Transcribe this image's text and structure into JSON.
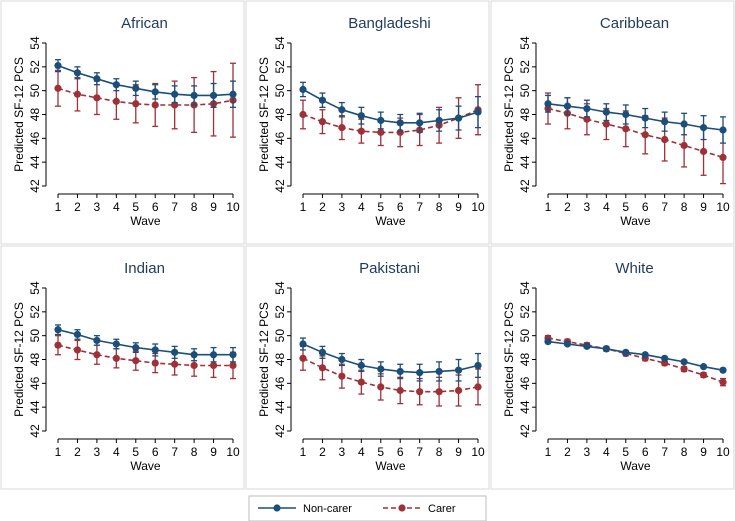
{
  "chart_data": {
    "type": "line",
    "colors": {
      "noncarer": "#1b4f7a",
      "carer": "#9e3138"
    },
    "legend": {
      "placement": "bottom-center",
      "items": [
        "Non-carer",
        "Carer"
      ]
    },
    "panels": [
      {
        "title": "African",
        "xlabel": "Wave",
        "ylabel": "Predicted SF-12 PCS",
        "x": [
          1,
          2,
          3,
          4,
          5,
          6,
          7,
          8,
          9,
          10
        ],
        "ylim": [
          42,
          54
        ],
        "yticks": [
          42,
          44,
          46,
          48,
          50,
          52,
          54
        ],
        "series": [
          {
            "name": "Non-carer",
            "values": [
              52.1,
              51.5,
              51.0,
              50.5,
              50.2,
              49.9,
              49.7,
              49.6,
              49.6,
              49.7
            ],
            "ci_low": [
              51.6,
              51.0,
              50.5,
              50.0,
              49.6,
              49.3,
              49.0,
              48.8,
              48.6,
              48.6
            ],
            "ci_high": [
              52.6,
              52.0,
              51.5,
              51.0,
              50.8,
              50.5,
              50.4,
              50.4,
              50.6,
              50.8
            ]
          },
          {
            "name": "Carer",
            "values": [
              50.2,
              49.7,
              49.4,
              49.1,
              48.9,
              48.8,
              48.8,
              48.8,
              48.9,
              49.2
            ],
            "ci_low": [
              48.7,
              48.3,
              48.0,
              47.6,
              47.3,
              47.0,
              46.8,
              46.5,
              46.2,
              46.1
            ],
            "ci_high": [
              51.7,
              51.1,
              50.8,
              50.6,
              50.5,
              50.6,
              50.8,
              51.1,
              51.6,
              52.3
            ]
          }
        ]
      },
      {
        "title": "Bangladeshi",
        "xlabel": "Wave",
        "ylabel": "Predicted SF-12 PCS",
        "x": [
          1,
          2,
          3,
          4,
          5,
          6,
          7,
          8,
          9,
          10
        ],
        "ylim": [
          42,
          54
        ],
        "yticks": [
          42,
          44,
          46,
          48,
          50,
          52,
          54
        ],
        "series": [
          {
            "name": "Non-carer",
            "values": [
              50.1,
              49.2,
              48.4,
              47.9,
              47.5,
              47.3,
              47.3,
              47.5,
              47.7,
              48.2
            ],
            "ci_low": [
              49.5,
              48.6,
              47.8,
              47.2,
              46.8,
              46.6,
              46.5,
              46.6,
              46.7,
              46.9
            ],
            "ci_high": [
              50.7,
              49.8,
              49.0,
              48.6,
              48.2,
              48.0,
              48.1,
              48.4,
              48.7,
              49.5
            ]
          },
          {
            "name": "Carer",
            "values": [
              48.0,
              47.4,
              46.9,
              46.6,
              46.5,
              46.5,
              46.7,
              47.1,
              47.7,
              48.4
            ],
            "ci_low": [
              46.8,
              46.4,
              45.9,
              45.6,
              45.4,
              45.3,
              45.4,
              45.6,
              46.0,
              46.3
            ],
            "ci_high": [
              49.2,
              48.4,
              47.9,
              47.6,
              47.6,
              47.7,
              48.0,
              48.6,
              49.4,
              50.5
            ]
          }
        ]
      },
      {
        "title": "Caribbean",
        "xlabel": "Wave",
        "ylabel": "Predicted SF-12 PCS",
        "x": [
          1,
          2,
          3,
          4,
          5,
          6,
          7,
          8,
          9,
          10
        ],
        "ylim": [
          42,
          54
        ],
        "yticks": [
          42,
          44,
          46,
          48,
          50,
          52,
          54
        ],
        "series": [
          {
            "name": "Non-carer",
            "values": [
              48.9,
              48.7,
              48.5,
              48.2,
              48.0,
              47.7,
              47.4,
              47.2,
              46.9,
              46.7
            ],
            "ci_low": [
              48.2,
              48.0,
              47.8,
              47.5,
              47.2,
              46.9,
              46.6,
              46.3,
              45.9,
              45.6
            ],
            "ci_high": [
              49.6,
              49.4,
              49.2,
              48.9,
              48.8,
              48.5,
              48.2,
              48.1,
              47.9,
              47.8
            ]
          },
          {
            "name": "Carer",
            "values": [
              48.5,
              48.1,
              47.6,
              47.2,
              46.8,
              46.3,
              45.9,
              45.4,
              44.9,
              44.4
            ],
            "ci_low": [
              47.2,
              46.8,
              46.3,
              45.9,
              45.3,
              44.7,
              44.1,
              43.6,
              42.9,
              42.2
            ],
            "ci_high": [
              49.8,
              49.4,
              48.9,
              48.5,
              48.3,
              47.9,
              47.7,
              47.2,
              46.9,
              46.6
            ]
          }
        ]
      },
      {
        "title": "Indian",
        "xlabel": "Wave",
        "ylabel": "Predicted SF-12 PCS",
        "x": [
          1,
          2,
          3,
          4,
          5,
          6,
          7,
          8,
          9,
          10
        ],
        "ylim": [
          42,
          54
        ],
        "yticks": [
          42,
          44,
          46,
          48,
          50,
          52,
          54
        ],
        "series": [
          {
            "name": "Non-carer",
            "values": [
              50.5,
              50.1,
              49.6,
              49.3,
              49.0,
              48.8,
              48.6,
              48.4,
              48.4,
              48.4
            ],
            "ci_low": [
              50.1,
              49.7,
              49.2,
              48.9,
              48.6,
              48.3,
              48.1,
              47.9,
              47.8,
              47.8
            ],
            "ci_high": [
              50.9,
              50.5,
              50.0,
              49.7,
              49.4,
              49.3,
              49.1,
              48.9,
              49.0,
              49.0
            ]
          },
          {
            "name": "Carer",
            "values": [
              49.2,
              48.8,
              48.4,
              48.1,
              47.9,
              47.7,
              47.6,
              47.5,
              47.5,
              47.5
            ],
            "ci_low": [
              48.4,
              48.0,
              47.6,
              47.3,
              47.1,
              46.9,
              46.7,
              46.6,
              46.5,
              46.4
            ],
            "ci_high": [
              50.0,
              49.6,
              49.2,
              48.9,
              48.7,
              48.5,
              48.5,
              48.4,
              48.5,
              48.6
            ]
          }
        ]
      },
      {
        "title": "Pakistani",
        "xlabel": "Wave",
        "ylabel": "Predicted SF-12 PCS",
        "x": [
          1,
          2,
          3,
          4,
          5,
          6,
          7,
          8,
          9,
          10
        ],
        "ylim": [
          42,
          54
        ],
        "yticks": [
          42,
          44,
          46,
          48,
          50,
          52,
          54
        ],
        "series": [
          {
            "name": "Non-carer",
            "values": [
              49.3,
              48.6,
              48.0,
              47.5,
              47.2,
              47.0,
              46.9,
              47.0,
              47.1,
              47.5
            ],
            "ci_low": [
              48.8,
              48.1,
              47.5,
              47.0,
              46.6,
              46.4,
              46.2,
              46.2,
              46.2,
              46.5
            ],
            "ci_high": [
              49.8,
              49.1,
              48.5,
              48.0,
              47.8,
              47.6,
              47.6,
              47.8,
              48.0,
              48.5
            ]
          },
          {
            "name": "Carer",
            "values": [
              48.1,
              47.3,
              46.6,
              46.1,
              45.7,
              45.4,
              45.3,
              45.3,
              45.4,
              45.7
            ],
            "ci_low": [
              47.1,
              46.3,
              45.6,
              45.1,
              44.6,
              44.3,
              44.2,
              44.1,
              44.1,
              44.2
            ],
            "ci_high": [
              49.1,
              48.3,
              47.6,
              47.1,
              46.8,
              46.5,
              46.4,
              46.5,
              46.7,
              47.2
            ]
          }
        ]
      },
      {
        "title": "White",
        "xlabel": "Wave",
        "ylabel": "Predicted SF-12 PCS",
        "x": [
          1,
          2,
          3,
          4,
          5,
          6,
          7,
          8,
          9,
          10
        ],
        "ylim": [
          42,
          54
        ],
        "yticks": [
          42,
          44,
          46,
          48,
          50,
          52,
          54
        ],
        "series": [
          {
            "name": "Non-carer",
            "values": [
              49.5,
              49.3,
              49.1,
              48.9,
              48.6,
              48.4,
              48.1,
              47.8,
              47.4,
              47.1
            ],
            "ci_low": [
              49.4,
              49.2,
              49.0,
              48.8,
              48.5,
              48.3,
              48.0,
              47.7,
              47.3,
              47.0
            ],
            "ci_high": [
              49.6,
              49.4,
              49.2,
              49.0,
              48.7,
              48.5,
              48.2,
              47.9,
              47.5,
              47.2
            ]
          },
          {
            "name": "Carer",
            "values": [
              49.8,
              49.5,
              49.2,
              48.9,
              48.5,
              48.1,
              47.7,
              47.2,
              46.7,
              46.1
            ],
            "ci_low": [
              49.6,
              49.3,
              49.0,
              48.7,
              48.3,
              47.9,
              47.5,
              47.0,
              46.5,
              45.8
            ],
            "ci_high": [
              50.0,
              49.7,
              49.4,
              49.1,
              48.7,
              48.3,
              47.9,
              47.4,
              46.9,
              46.4
            ]
          }
        ]
      }
    ]
  }
}
